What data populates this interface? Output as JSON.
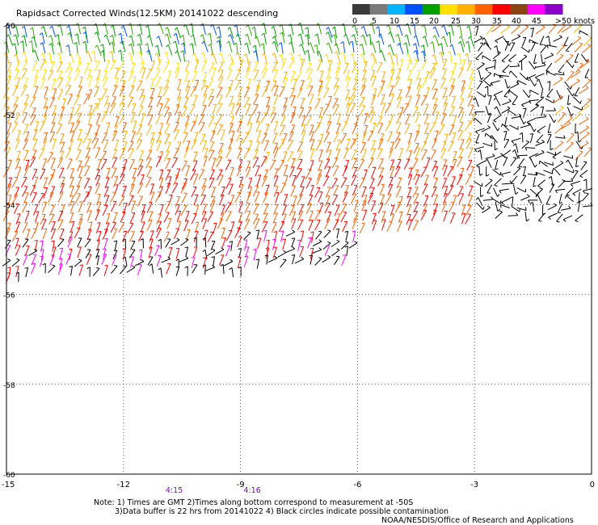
{
  "title": "Rapidsact Corrected Winds(12.5KM) 20141022 descending",
  "legend": {
    "unit": "knots",
    "labels": [
      "0",
      "5",
      "10",
      "15",
      "20",
      "25",
      "30",
      "35",
      "40",
      "45",
      ">50 knots"
    ],
    "colors": [
      "#3a3a3a",
      "#7a7a7a",
      "#00b4ff",
      "#0050ff",
      "#00a000",
      "#ffe000",
      "#ffb000",
      "#ff6000",
      "#ff0000",
      "#8b4513",
      "#ff00ff",
      "#8a00c8"
    ]
  },
  "axes": {
    "x_ticks": [
      "-15",
      "-12",
      "-9",
      "-6",
      "-3",
      "0"
    ],
    "x_values": [
      -15,
      -12,
      -9,
      -6,
      -3,
      0
    ],
    "y_ticks": [
      "-50",
      "-52",
      "-54",
      "-56",
      "-58",
      "-60"
    ],
    "y_values": [
      -50,
      -52,
      -54,
      -56,
      -58,
      -60
    ]
  },
  "times": [
    {
      "label": "4:15",
      "lon": -10.7
    },
    {
      "label": "4:16",
      "lon": -8.7
    }
  ],
  "notes": {
    "line1": "Note: 1) Times are GMT 2)Times along bottom correspond to measurement at -50S",
    "line2": "3)Data buffer is 22 hrs from 20141022 4) Black circles indicate possible contamination",
    "credit": "NOAA/NESDIS/Office of Research and Applications"
  },
  "colors": {
    "grid": "#555555",
    "time_label": "#8a00c8",
    "contaminated": "#000000"
  }
}
